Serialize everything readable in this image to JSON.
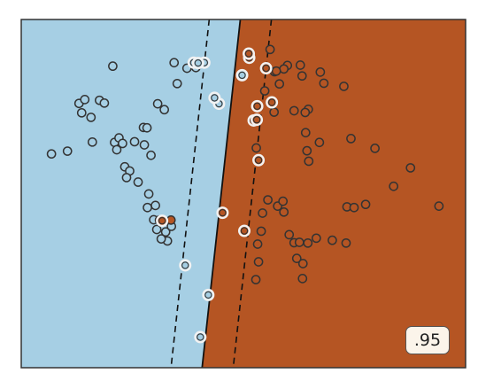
{
  "chart_data": {
    "type": "scatter",
    "title": "",
    "xlabel": "",
    "ylabel": "",
    "xlim": [
      0,
      1
    ],
    "ylim": [
      0,
      1
    ],
    "grid": false,
    "score": ".95",
    "colors": {
      "class_a_region": "#a6cfe4",
      "class_b_region": "#b55523",
      "class_a_point": "#a6cfe4",
      "class_b_point": "#b55523",
      "point_edge": "#333333",
      "support_vector_ring": "#f2f2f2",
      "boundary": "#111111"
    },
    "decision_boundary": {
      "x_at_top": 0.493,
      "x_at_bottom": 0.407
    },
    "margin_lower": {
      "x_at_top": 0.423,
      "x_at_bottom": 0.337
    },
    "margin_upper": {
      "x_at_top": 0.563,
      "x_at_bottom": 0.477
    },
    "series": [
      {
        "class": "a",
        "points": [
          [
            0.206,
            0.866
          ],
          [
            0.176,
            0.768
          ],
          [
            0.13,
            0.759
          ],
          [
            0.143,
            0.77
          ],
          [
            0.136,
            0.732
          ],
          [
            0.157,
            0.719
          ],
          [
            0.187,
            0.76
          ],
          [
            0.16,
            0.648
          ],
          [
            0.104,
            0.622
          ],
          [
            0.068,
            0.614
          ],
          [
            0.21,
            0.647
          ],
          [
            0.22,
            0.66
          ],
          [
            0.215,
            0.626
          ],
          [
            0.228,
            0.644
          ],
          [
            0.255,
            0.649
          ],
          [
            0.277,
            0.64
          ],
          [
            0.275,
            0.69
          ],
          [
            0.292,
            0.61
          ],
          [
            0.307,
            0.758
          ],
          [
            0.322,
            0.741
          ],
          [
            0.283,
            0.689
          ],
          [
            0.233,
            0.577
          ],
          [
            0.244,
            0.565
          ],
          [
            0.237,
            0.546
          ],
          [
            0.263,
            0.533
          ],
          [
            0.287,
            0.499
          ],
          [
            0.284,
            0.46
          ],
          [
            0.302,
            0.466
          ],
          [
            0.298,
            0.425
          ],
          [
            0.311,
            0.424
          ],
          [
            0.305,
            0.397
          ],
          [
            0.325,
            0.39
          ],
          [
            0.329,
            0.364
          ],
          [
            0.315,
            0.37
          ],
          [
            0.338,
            0.406
          ],
          [
            0.344,
            0.876
          ],
          [
            0.351,
            0.816
          ],
          [
            0.373,
            0.86
          ],
          [
            0.393,
            0.862
          ]
        ]
      },
      {
        "class": "b",
        "points": [
          [
            0.56,
            0.914
          ],
          [
            0.599,
            0.868
          ],
          [
            0.591,
            0.858
          ],
          [
            0.57,
            0.85
          ],
          [
            0.628,
            0.869
          ],
          [
            0.673,
            0.849
          ],
          [
            0.681,
            0.817
          ],
          [
            0.726,
            0.808
          ],
          [
            0.581,
            0.815
          ],
          [
            0.548,
            0.795
          ],
          [
            0.569,
            0.734
          ],
          [
            0.614,
            0.738
          ],
          [
            0.646,
            0.742
          ],
          [
            0.639,
            0.733
          ],
          [
            0.64,
            0.675
          ],
          [
            0.671,
            0.647
          ],
          [
            0.643,
            0.623
          ],
          [
            0.647,
            0.593
          ],
          [
            0.742,
            0.658
          ],
          [
            0.796,
            0.63
          ],
          [
            0.876,
            0.574
          ],
          [
            0.838,
            0.521
          ],
          [
            0.555,
            0.482
          ],
          [
            0.543,
            0.444
          ],
          [
            0.577,
            0.464
          ],
          [
            0.591,
            0.447
          ],
          [
            0.589,
            0.478
          ],
          [
            0.54,
            0.392
          ],
          [
            0.603,
            0.382
          ],
          [
            0.614,
            0.359
          ],
          [
            0.645,
            0.358
          ],
          [
            0.62,
            0.314
          ],
          [
            0.626,
            0.36
          ],
          [
            0.532,
            0.355
          ],
          [
            0.534,
            0.304
          ],
          [
            0.528,
            0.253
          ],
          [
            0.633,
            0.256
          ],
          [
            0.634,
            0.299
          ],
          [
            0.664,
            0.372
          ],
          [
            0.7,
            0.366
          ],
          [
            0.731,
            0.358
          ],
          [
            0.733,
            0.462
          ],
          [
            0.749,
            0.46
          ],
          [
            0.775,
            0.469
          ],
          [
            0.94,
            0.464
          ],
          [
            0.529,
            0.631
          ],
          [
            0.632,
            0.838
          ],
          [
            0.337,
            0.424
          ],
          [
            0.574,
            0.852
          ]
        ]
      }
    ],
    "support_vectors": [
      {
        "class": "a",
        "x": 0.388,
        "y": 0.876
      },
      [
        0.412,
        0.876
      ],
      [
        0.398,
        0.875
      ],
      {
        "class": "a",
        "x": 0.445,
        "y": 0.758
      },
      {
        "class": "a",
        "x": 0.497,
        "y": 0.84
      },
      {
        "class": "a",
        "x": 0.369,
        "y": 0.294
      },
      {
        "class": "a",
        "x": 0.421,
        "y": 0.209
      },
      {
        "class": "a",
        "x": 0.403,
        "y": 0.088
      },
      {
        "class": "a",
        "x": 0.435,
        "y": 0.775
      },
      {
        "class": "b",
        "x": 0.513,
        "y": 0.89
      },
      {
        "class": "b",
        "x": 0.512,
        "y": 0.902
      },
      {
        "class": "b",
        "x": 0.551,
        "y": 0.86
      },
      {
        "class": "b",
        "x": 0.564,
        "y": 0.762
      },
      {
        "class": "b",
        "x": 0.531,
        "y": 0.751
      },
      {
        "class": "b",
        "x": 0.523,
        "y": 0.71
      },
      {
        "class": "b",
        "x": 0.53,
        "y": 0.712
      },
      {
        "class": "b",
        "x": 0.534,
        "y": 0.596
      },
      {
        "class": "b",
        "x": 0.453,
        "y": 0.445
      },
      {
        "class": "b",
        "x": 0.317,
        "y": 0.422
      },
      {
        "class": "b",
        "x": 0.502,
        "y": 0.393
      }
    ]
  }
}
